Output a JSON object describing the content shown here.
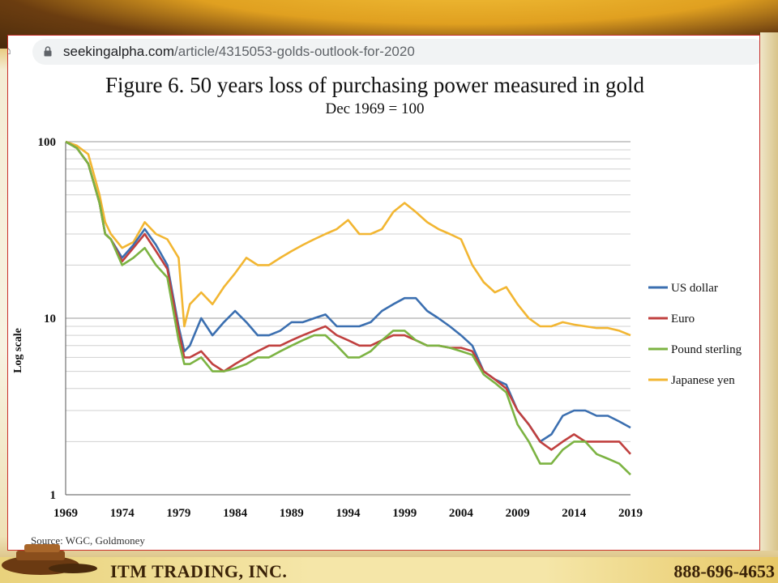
{
  "browser": {
    "url_domain": "seekingalpha.com",
    "url_path": "/article/4315053-golds-outlook-for-2020"
  },
  "footer": {
    "company": "ITM TRADING, INC.",
    "phone": "888-696-4653"
  },
  "chart_data": {
    "type": "line",
    "title": "Figure 6. 50 years loss of purchasing power measured in gold",
    "subtitle": "Dec 1969 = 100",
    "ylabel": "Log scale",
    "xlabel": "",
    "source": "Source: WGC, Goldmoney",
    "yscale": "log",
    "ylim": [
      1,
      100
    ],
    "y_ticks": [
      1,
      10,
      100
    ],
    "x_ticks": [
      1969,
      1974,
      1979,
      1984,
      1989,
      1994,
      1999,
      2004,
      2009,
      2014,
      2019
    ],
    "xlim": [
      1969,
      2019
    ],
    "grid": "horizontal",
    "legend_position": "right",
    "x": [
      1969,
      1970,
      1971,
      1972,
      1972.5,
      1973,
      1974,
      1975,
      1976,
      1977,
      1978,
      1979,
      1979.5,
      1980,
      1981,
      1982,
      1983,
      1984,
      1985,
      1986,
      1987,
      1988,
      1989,
      1990,
      1991,
      1992,
      1993,
      1994,
      1995,
      1996,
      1997,
      1998,
      1999,
      2000,
      2001,
      2002,
      2003,
      2004,
      2005,
      2006,
      2007,
      2008,
      2009,
      2010,
      2011,
      2012,
      2013,
      2014,
      2015,
      2016,
      2017,
      2018,
      2019
    ],
    "series": [
      {
        "name": "US dollar",
        "color": "#3b6fb0",
        "values": [
          100,
          92,
          75,
          45,
          30,
          28,
          22,
          26,
          32,
          26,
          20,
          9,
          6.5,
          7,
          10,
          8,
          9.5,
          11,
          9.5,
          8,
          8,
          8.5,
          9.5,
          9.5,
          10,
          10.5,
          9,
          9,
          9,
          9.5,
          11,
          12,
          13,
          13,
          11,
          10,
          9,
          8,
          7,
          5,
          4.5,
          4.2,
          3,
          2.5,
          2,
          2.2,
          2.8,
          3,
          3,
          2.8,
          2.8,
          2.6,
          2.4
        ]
      },
      {
        "name": "Euro",
        "color": "#c0403f",
        "values": [
          100,
          92,
          75,
          45,
          30,
          28,
          21,
          25,
          30,
          24,
          19,
          8.5,
          6,
          6,
          6.5,
          5.5,
          5,
          5.5,
          6,
          6.5,
          7,
          7,
          7.5,
          8,
          8.5,
          9,
          8,
          7.5,
          7,
          7,
          7.5,
          8,
          8,
          7.5,
          7,
          7,
          6.8,
          6.8,
          6.5,
          5,
          4.5,
          4,
          3,
          2.5,
          2,
          1.8,
          2,
          2.2,
          2,
          2,
          2,
          2,
          1.7
        ]
      },
      {
        "name": "Pound sterling",
        "color": "#7cb342",
        "values": [
          100,
          92,
          75,
          45,
          30,
          28,
          20,
          22,
          25,
          20,
          17,
          7.5,
          5.5,
          5.5,
          6,
          5,
          5,
          5.2,
          5.5,
          6,
          6,
          6.5,
          7,
          7.5,
          8,
          8,
          7,
          6,
          6,
          6.5,
          7.5,
          8.5,
          8.5,
          7.5,
          7,
          7,
          6.8,
          6.5,
          6.2,
          4.8,
          4.3,
          3.8,
          2.5,
          2,
          1.5,
          1.5,
          1.8,
          2,
          2,
          1.7,
          1.6,
          1.5,
          1.3
        ]
      },
      {
        "name": "Japanese yen",
        "color": "#f2b632",
        "values": [
          100,
          95,
          85,
          50,
          35,
          30,
          25,
          27,
          35,
          30,
          28,
          22,
          9,
          12,
          14,
          12,
          15,
          18,
          22,
          20,
          20,
          22,
          24,
          26,
          28,
          30,
          32,
          36,
          30,
          30,
          32,
          40,
          45,
          40,
          35,
          32,
          30,
          28,
          20,
          16,
          14,
          15,
          12,
          10,
          9,
          9,
          9.5,
          9.2,
          9,
          8.8,
          8.8,
          8.5,
          8
        ]
      }
    ]
  }
}
